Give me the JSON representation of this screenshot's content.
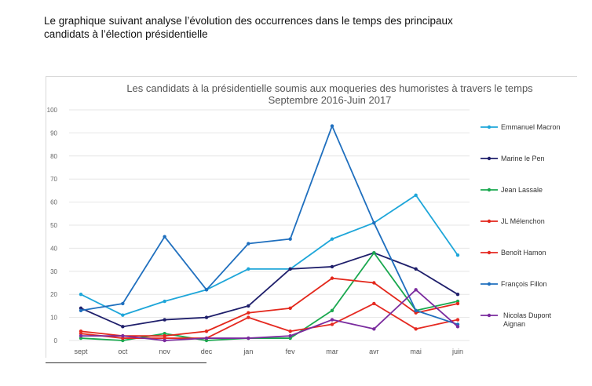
{
  "intro": {
    "line1": "Le graphique suivant analyse l’évolution des occurrences dans le temps des principaux",
    "line2": "candidats à l’élection présidentielle"
  },
  "chart_data": {
    "type": "line",
    "title": "Les candidats à la présidentielle soumis aux moqueries des humoristes à travers le temps",
    "subtitle": "Septembre 2016-Juin 2017",
    "categories": [
      "sept",
      "oct",
      "nov",
      "dec",
      "jan",
      "fev",
      "mar",
      "avr",
      "mai",
      "juin"
    ],
    "ylim": [
      0,
      100
    ],
    "yticks": [
      0,
      10,
      20,
      30,
      40,
      50,
      60,
      70,
      80,
      90,
      100
    ],
    "grid": true,
    "legend_position": "right",
    "series": [
      {
        "name": "Emmanuel Macron",
        "color": "#1ea6d9",
        "values": [
          20,
          11,
          17,
          22,
          31,
          31,
          44,
          51,
          63,
          37
        ]
      },
      {
        "name": "Marine le Pen",
        "color": "#1f1f6b",
        "values": [
          14,
          6,
          9,
          10,
          15,
          31,
          32,
          38,
          31,
          20
        ]
      },
      {
        "name": "Jean Lassale",
        "color": "#1aa84f",
        "values": [
          1,
          0,
          3,
          0,
          1,
          1,
          13,
          38,
          13,
          17
        ]
      },
      {
        "name": "JL Mélenchon",
        "color": "#e3271b",
        "values": [
          4,
          2,
          2,
          4,
          12,
          14,
          27,
          25,
          12,
          16
        ]
      },
      {
        "name": "Benoît Hamon",
        "color": "#e52a22",
        "values": [
          3,
          1,
          1,
          1,
          10,
          4,
          7,
          16,
          5,
          9
        ]
      },
      {
        "name": "François Fillon",
        "color": "#1f6fbe",
        "values": [
          13,
          16,
          45,
          22,
          42,
          44,
          93,
          51,
          13,
          7
        ]
      },
      {
        "name": "Nicolas Dupont Aignan",
        "color": "#7a2b9e",
        "values": [
          2,
          2,
          0,
          1,
          1,
          2,
          9,
          5,
          22,
          6
        ]
      }
    ]
  }
}
